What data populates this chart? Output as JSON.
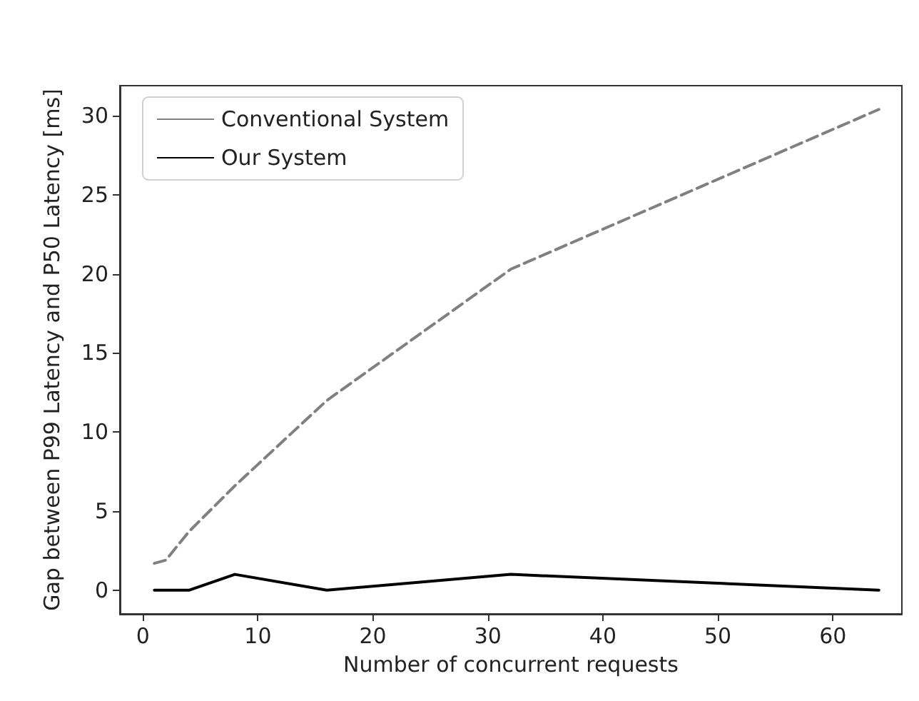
{
  "chart_data": {
    "type": "line",
    "xlabel": "Number of concurrent requests",
    "ylabel": "Gap between P99 Latency and P50 Latency [ms]",
    "x": [
      1,
      2,
      4,
      8,
      16,
      32,
      64
    ],
    "series": [
      {
        "name": "Conventional System",
        "color": "#808080",
        "line_style": "dashed",
        "values": [
          1.7,
          1.9,
          3.7,
          6.6,
          12.0,
          20.3,
          30.4
        ]
      },
      {
        "name": "Our System",
        "color": "#000000",
        "line_style": "solid",
        "values": [
          0,
          0,
          0,
          1,
          0,
          1,
          0
        ]
      }
    ],
    "xlim": [
      -2,
      66
    ],
    "xticks": [
      0,
      10,
      20,
      30,
      40,
      50,
      60
    ],
    "ylim": [
      -1.5,
      31.9
    ],
    "yticks": [
      0,
      5,
      10,
      15,
      20,
      25,
      30
    ],
    "grid": false,
    "legend": "top left",
    "marker": "none"
  }
}
